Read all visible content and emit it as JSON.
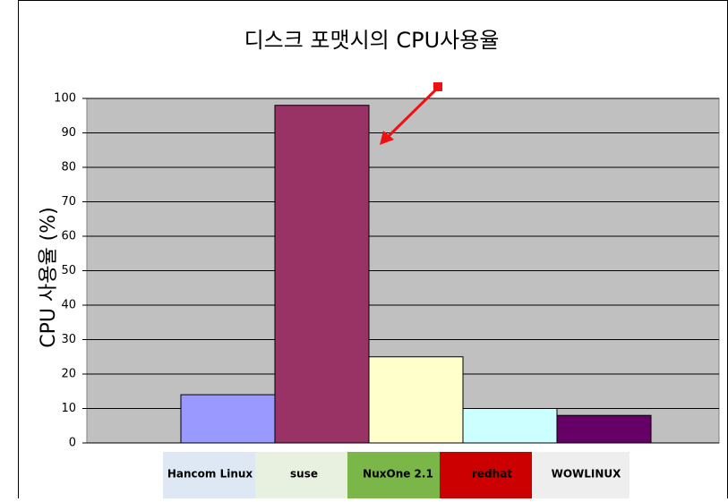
{
  "chart_data": {
    "type": "bar",
    "title": "디스크 포맷시의 CPU사용율",
    "y_label": "CPU 사용율 (%)",
    "categories": [
      "Hancom Linux",
      "suse",
      "NuxOne 2.1",
      "redhat",
      "WOWLINUX"
    ],
    "values": [
      14,
      98,
      25,
      10,
      8
    ],
    "colors": [
      "#9999ff",
      "#993366",
      "#ffffcc",
      "#ccffff",
      "#660066"
    ],
    "ylim": [
      0,
      100
    ],
    "yticks": [
      0,
      10,
      20,
      30,
      40,
      50,
      60,
      70,
      80,
      90,
      100
    ],
    "grid": true
  }
}
